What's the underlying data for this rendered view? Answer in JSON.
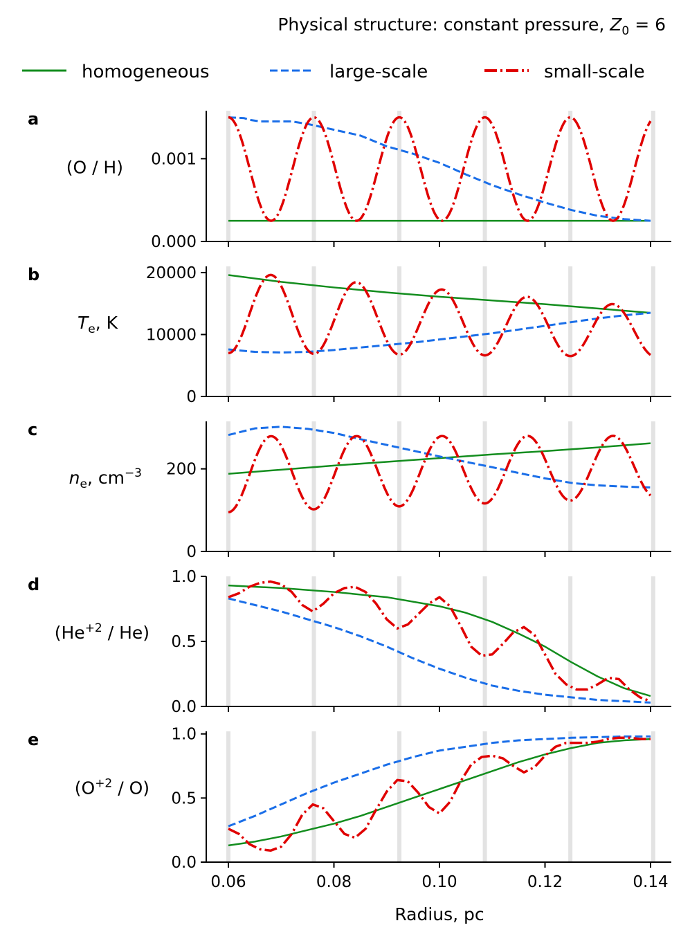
{
  "title": "Physical structure: constant pressure, Z0 = 6",
  "title_parts": {
    "prefix": "Physical structure: constant pressure, ",
    "var": "Z",
    "sub": "0",
    "suffix": " = 6"
  },
  "colors": {
    "homogeneous": "#138d1e",
    "large": "#1a6ee8",
    "small": "#e00000",
    "vline": "#e3e3e3"
  },
  "legend": {
    "homogeneous": "homogeneous",
    "large": "large-scale",
    "small": "small-scale"
  },
  "chart_data": {
    "type": "line",
    "xlabel": "Radius, pc",
    "xlim": [
      0.055,
      0.1445
    ],
    "xticks": [
      0.06,
      0.08,
      0.1,
      0.12,
      0.14
    ],
    "xtick_labels": [
      "0.06",
      "0.08",
      "0.10",
      "0.12",
      "0.14"
    ],
    "vertical_markers": [
      0.06,
      0.0762,
      0.0924,
      0.1086,
      0.1248,
      0.1405
    ],
    "panels": [
      {
        "id": "a",
        "label": "a",
        "ylabel": {
          "text": "(O / H)"
        },
        "ylim": [
          0,
          0.00158
        ],
        "yticks": [
          0,
          0.001
        ],
        "ytick_labels": [
          "0.000",
          "0.001"
        ],
        "series": {
          "homogeneous": {
            "x": [
              0.06,
              0.14
            ],
            "y": [
              0.00025,
              0.00025
            ]
          },
          "large": {
            "x": [
              0.06,
              0.063,
              0.064,
              0.066,
              0.068,
              0.07,
              0.072,
              0.075,
              0.08,
              0.085,
              0.09,
              0.095,
              0.1,
              0.105,
              0.11,
              0.115,
              0.12,
              0.125,
              0.13,
              0.135,
              0.14
            ],
            "y": [
              0.0015,
              0.00149,
              0.00147,
              0.00145,
              0.00145,
              0.00145,
              0.00145,
              0.00142,
              0.00135,
              0.00128,
              0.00115,
              0.00106,
              0.00095,
              0.00081,
              0.00068,
              0.00057,
              0.00047,
              0.00038,
              0.00031,
              0.00027,
              0.00025
            ]
          },
          "small": {
            "type": "osc",
            "base": 0.000875,
            "amp": 0.000625,
            "amp_end": 0.000625,
            "phase": 1,
            "base_end": 0.000875
          }
        }
      },
      {
        "id": "b",
        "label": "b",
        "ylabel": {
          "text": "T",
          "sub": "e",
          "suffix": ", K"
        },
        "ylim": [
          0,
          21000
        ],
        "yticks": [
          0,
          10000,
          20000
        ],
        "ytick_labels": [
          "0",
          "10000",
          "20000"
        ],
        "series": {
          "homogeneous": {
            "x": [
              0.06,
              0.07,
              0.08,
              0.09,
              0.1,
              0.11,
              0.12,
              0.13,
              0.14
            ],
            "y": [
              19600,
              18500,
              17600,
              16800,
              16100,
              15500,
              14900,
              14200,
              13500
            ]
          },
          "large": {
            "x": [
              0.06,
              0.065,
              0.07,
              0.075,
              0.08,
              0.085,
              0.09,
              0.095,
              0.1,
              0.105,
              0.11,
              0.115,
              0.12,
              0.125,
              0.13,
              0.135,
              0.14
            ],
            "y": [
              7600,
              7200,
              7100,
              7200,
              7500,
              7900,
              8300,
              8700,
              9200,
              9700,
              10200,
              10800,
              11400,
              12000,
              12600,
              13100,
              13500
            ]
          },
          "small": {
            "type": "osc",
            "base": 13600,
            "amp": 6600,
            "amp_end": 4000,
            "phase": -1,
            "base_end": 10400
          }
        }
      },
      {
        "id": "c",
        "label": "c",
        "ylabel": {
          "text": "n",
          "sub": "e",
          "suffix": ", cm",
          "sup": "−3"
        },
        "ylim": [
          0,
          315
        ],
        "yticks": [
          0,
          200
        ],
        "ytick_labels": [
          "0",
          "200"
        ],
        "series": {
          "homogeneous": {
            "x": [
              0.06,
              0.07,
              0.08,
              0.09,
              0.1,
              0.11,
              0.12,
              0.13,
              0.14
            ],
            "y": [
              188,
              198,
              208,
              217,
              226,
              235,
              243,
              252,
              262
            ]
          },
          "large": {
            "x": [
              0.06,
              0.065,
              0.07,
              0.075,
              0.08,
              0.085,
              0.09,
              0.095,
              0.1,
              0.105,
              0.11,
              0.115,
              0.12,
              0.125,
              0.13,
              0.135,
              0.14
            ],
            "y": [
              282,
              298,
              302,
              297,
              287,
              272,
              258,
              244,
              230,
              217,
              204,
              190,
              177,
              166,
              160,
              157,
              155
            ]
          },
          "small": {
            "type": "osc",
            "base": 187,
            "amp": 92,
            "amp_end": 75,
            "phase": -1,
            "base_end": 205
          }
        }
      },
      {
        "id": "d",
        "label": "d",
        "ylabel": {
          "text": "(He",
          "sup": "+2",
          "suffix": " / He)"
        },
        "ylim": [
          0,
          1.0
        ],
        "yticks": [
          0,
          0.5,
          1.0
        ],
        "ytick_labels": [
          "0.0",
          "0.5",
          "1.0"
        ],
        "series": {
          "homogeneous": {
            "x": [
              0.06,
              0.07,
              0.08,
              0.09,
              0.1,
              0.105,
              0.11,
              0.115,
              0.12,
              0.125,
              0.13,
              0.135,
              0.14
            ],
            "y": [
              0.93,
              0.91,
              0.88,
              0.84,
              0.77,
              0.72,
              0.65,
              0.56,
              0.46,
              0.34,
              0.23,
              0.14,
              0.08
            ]
          },
          "large": {
            "x": [
              0.06,
              0.065,
              0.07,
              0.075,
              0.08,
              0.085,
              0.09,
              0.095,
              0.1,
              0.105,
              0.11,
              0.115,
              0.12,
              0.125,
              0.13,
              0.135,
              0.14
            ],
            "y": [
              0.83,
              0.78,
              0.73,
              0.67,
              0.61,
              0.54,
              0.46,
              0.37,
              0.29,
              0.22,
              0.16,
              0.12,
              0.09,
              0.07,
              0.05,
              0.04,
              0.03
            ]
          },
          "small": {
            "x": [
              0.06,
              0.062,
              0.064,
              0.066,
              0.068,
              0.07,
              0.072,
              0.074,
              0.076,
              0.078,
              0.08,
              0.082,
              0.084,
              0.086,
              0.088,
              0.09,
              0.092,
              0.094,
              0.096,
              0.098,
              0.1,
              0.102,
              0.104,
              0.106,
              0.108,
              0.11,
              0.112,
              0.114,
              0.116,
              0.118,
              0.12,
              0.122,
              0.124,
              0.126,
              0.128,
              0.13,
              0.132,
              0.134,
              0.136,
              0.138,
              0.14
            ],
            "y": [
              0.84,
              0.87,
              0.92,
              0.95,
              0.96,
              0.94,
              0.88,
              0.78,
              0.73,
              0.79,
              0.87,
              0.91,
              0.92,
              0.88,
              0.79,
              0.67,
              0.6,
              0.63,
              0.71,
              0.79,
              0.84,
              0.77,
              0.62,
              0.46,
              0.39,
              0.4,
              0.48,
              0.57,
              0.61,
              0.55,
              0.4,
              0.25,
              0.17,
              0.13,
              0.13,
              0.17,
              0.22,
              0.21,
              0.13,
              0.07,
              0.04
            ]
          }
        }
      },
      {
        "id": "e",
        "label": "e",
        "ylabel": {
          "text": "(O",
          "sup": "+2",
          "suffix": " / O)"
        },
        "ylim": [
          0,
          1.02
        ],
        "yticks": [
          0,
          0.5,
          1.0
        ],
        "ytick_labels": [
          "0.0",
          "0.5",
          "1.0"
        ],
        "series": {
          "homogeneous": {
            "x": [
              0.06,
              0.065,
              0.07,
              0.075,
              0.08,
              0.085,
              0.09,
              0.095,
              0.1,
              0.105,
              0.11,
              0.115,
              0.12,
              0.125,
              0.13,
              0.135,
              0.14
            ],
            "y": [
              0.13,
              0.16,
              0.2,
              0.25,
              0.3,
              0.36,
              0.43,
              0.5,
              0.57,
              0.64,
              0.71,
              0.78,
              0.84,
              0.89,
              0.93,
              0.95,
              0.96
            ]
          },
          "large": {
            "x": [
              0.06,
              0.065,
              0.07,
              0.075,
              0.08,
              0.085,
              0.09,
              0.095,
              0.1,
              0.105,
              0.11,
              0.115,
              0.12,
              0.125,
              0.13,
              0.135,
              0.14
            ],
            "y": [
              0.28,
              0.36,
              0.45,
              0.54,
              0.62,
              0.69,
              0.76,
              0.82,
              0.87,
              0.9,
              0.93,
              0.95,
              0.96,
              0.97,
              0.975,
              0.98,
              0.98
            ]
          },
          "small": {
            "x": [
              0.06,
              0.062,
              0.064,
              0.066,
              0.068,
              0.07,
              0.072,
              0.074,
              0.076,
              0.078,
              0.08,
              0.082,
              0.084,
              0.086,
              0.088,
              0.09,
              0.092,
              0.094,
              0.096,
              0.098,
              0.1,
              0.102,
              0.104,
              0.106,
              0.108,
              0.11,
              0.112,
              0.114,
              0.116,
              0.118,
              0.12,
              0.122,
              0.124,
              0.126,
              0.128,
              0.13,
              0.132,
              0.134,
              0.136,
              0.138,
              0.14
            ],
            "y": [
              0.26,
              0.22,
              0.14,
              0.1,
              0.09,
              0.12,
              0.22,
              0.37,
              0.45,
              0.42,
              0.32,
              0.22,
              0.19,
              0.26,
              0.41,
              0.55,
              0.64,
              0.63,
              0.54,
              0.43,
              0.38,
              0.47,
              0.63,
              0.76,
              0.82,
              0.83,
              0.81,
              0.75,
              0.7,
              0.74,
              0.83,
              0.9,
              0.93,
              0.93,
              0.93,
              0.94,
              0.96,
              0.97,
              0.97,
              0.96,
              0.96
            ]
          }
        }
      }
    ]
  }
}
